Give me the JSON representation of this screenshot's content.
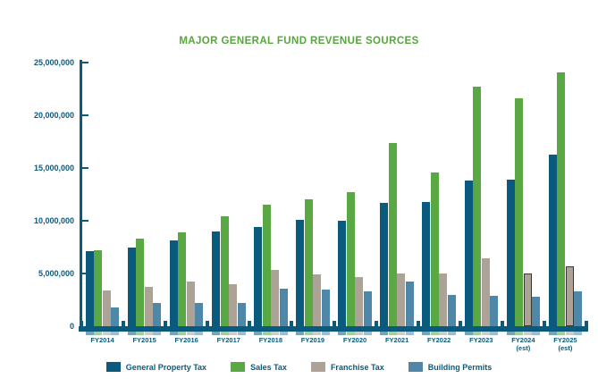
{
  "title": "MAJOR GENERAL FUND REVENUE SOURCES",
  "colors": {
    "title_green": "#56A63C",
    "axis_blue": "#0A5A7E",
    "series_property_tax": "#0A5A7E",
    "series_sales_tax": "#5AA843",
    "series_franchise_tax": "#ADA296",
    "series_building_permits": "#4E87A8",
    "estimate_outline": "#3a372f",
    "background": "#ffffff"
  },
  "chart_data": {
    "type": "bar",
    "title": "MAJOR GENERAL FUND REVENUE SOURCES",
    "xlabel": "",
    "ylabel": "",
    "ylim": [
      0,
      25000000
    ],
    "grid": false,
    "legend_position": "bottom",
    "y_ticks": [
      "25,000,000",
      "20,000,000",
      "15,000,000",
      "10,000,000",
      "5,000,000",
      "0"
    ],
    "categories": [
      {
        "label": "FY2014",
        "sub": "",
        "est": false
      },
      {
        "label": "FY2015",
        "sub": "",
        "est": false
      },
      {
        "label": "FY2016",
        "sub": "",
        "est": false
      },
      {
        "label": "FY2017",
        "sub": "",
        "est": false
      },
      {
        "label": "FY2018",
        "sub": "",
        "est": false
      },
      {
        "label": "FY2019",
        "sub": "",
        "est": false
      },
      {
        "label": "FY2020",
        "sub": "",
        "est": false
      },
      {
        "label": "FY2021",
        "sub": "",
        "est": false
      },
      {
        "label": "FY2022",
        "sub": "",
        "est": false
      },
      {
        "label": "FY2023",
        "sub": "",
        "est": false
      },
      {
        "label": "FY2024",
        "sub": "(est)",
        "est": true
      },
      {
        "label": "FY2025",
        "sub": "(est)",
        "est": true
      }
    ],
    "series": [
      {
        "name": "General Property Tax",
        "color": "#0A5A7E",
        "outline_on_estimates": false,
        "values": [
          7100000,
          7500000,
          8100000,
          9000000,
          9400000,
          10100000,
          10000000,
          11700000,
          11800000,
          13800000,
          13900000,
          16300000
        ]
      },
      {
        "name": "Sales Tax",
        "color": "#5AA843",
        "outline_on_estimates": false,
        "values": [
          7200000,
          8300000,
          8900000,
          10400000,
          11500000,
          12000000,
          12700000,
          17400000,
          14600000,
          22700000,
          21600000,
          24100000
        ]
      },
      {
        "name": "Franchise Tax",
        "color": "#ADA296",
        "outline_on_estimates": true,
        "values": [
          3400000,
          3700000,
          4200000,
          4000000,
          5300000,
          4900000,
          4700000,
          5000000,
          5000000,
          6400000,
          5000000,
          5700000
        ]
      },
      {
        "name": "Building Permits",
        "color": "#4E87A8",
        "outline_on_estimates": false,
        "values": [
          1800000,
          2200000,
          2200000,
          2200000,
          3600000,
          3500000,
          3300000,
          4200000,
          3000000,
          2900000,
          2800000,
          3300000
        ]
      }
    ]
  },
  "legend": {
    "items": [
      {
        "label": "General Property Tax",
        "color": "#0A5A7E"
      },
      {
        "label": "Sales Tax",
        "color": "#5AA843"
      },
      {
        "label": "Franchise Tax",
        "color": "#ADA296"
      },
      {
        "label": "Building Permits",
        "color": "#4E87A8"
      }
    ]
  }
}
